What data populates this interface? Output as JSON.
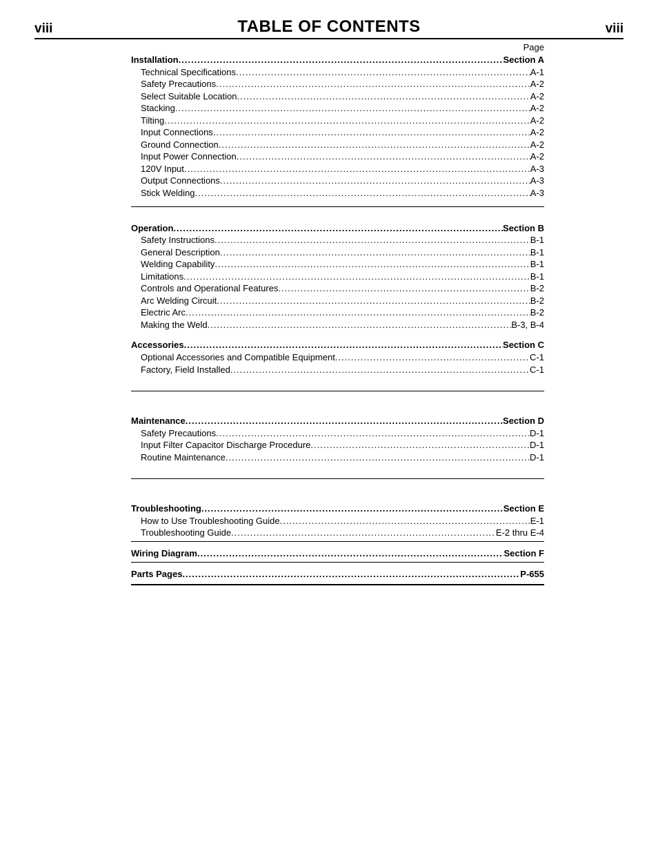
{
  "header": {
    "left_page_num": "viii",
    "title": "TABLE OF CONTENTS",
    "right_page_num": "viii"
  },
  "page_label": "Page",
  "sections": [
    {
      "style": "tight",
      "rows": [
        {
          "label": "Installation",
          "page": "Section A",
          "bold": true,
          "indent": 0
        },
        {
          "label": "Technical Specifications",
          "page": "A-1",
          "bold": false,
          "indent": 1
        },
        {
          "label": "Safety Precautions",
          "page": "A-2",
          "bold": false,
          "indent": 1
        },
        {
          "label": "Select Suitable Location",
          "page": "A-2",
          "bold": false,
          "indent": 1
        },
        {
          "label": "Stacking",
          "page": "A-2",
          "bold": false,
          "indent": 1
        },
        {
          "label": "Tilting",
          "page": "A-2",
          "bold": false,
          "indent": 1
        },
        {
          "label": "Input Connections",
          "page": "A-2",
          "bold": false,
          "indent": 1
        },
        {
          "label": "Ground Connection",
          "page": "A-2",
          "bold": false,
          "indent": 1
        },
        {
          "label": "Input Power Connection",
          "page": "A-2",
          "bold": false,
          "indent": 1
        },
        {
          "label": "120V Input",
          "page": "A-3",
          "bold": false,
          "indent": 1
        },
        {
          "label": "Output Connections",
          "page": "A-3",
          "bold": false,
          "indent": 1
        },
        {
          "label": "Stick Welding",
          "page": "A-3",
          "bold": false,
          "indent": 1
        }
      ]
    },
    {
      "style": "big",
      "pre_spacer": true,
      "rows": [
        {
          "label": "Operation",
          "page": "Section B",
          "bold": true,
          "indent": 0
        },
        {
          "label": "Safety Instructions",
          "page": "B-1",
          "bold": false,
          "indent": 1
        },
        {
          "label": "General Description",
          "page": "B-1",
          "bold": false,
          "indent": 1
        },
        {
          "label": "Welding Capability",
          "page": "B-1",
          "bold": false,
          "indent": 1
        },
        {
          "label": "Limitations",
          "page": "B-1",
          "bold": false,
          "indent": 1
        },
        {
          "label": "Controls and Operational Features",
          "page": "B-2",
          "bold": false,
          "indent": 1
        },
        {
          "label": "Arc Welding Circuit",
          "page": "B-2",
          "bold": false,
          "indent": 1
        },
        {
          "label": "Electric Arc",
          "page": "B-2",
          "bold": false,
          "indent": 1
        },
        {
          "label": "Making the Weld",
          "page": "B-3, B-4",
          "bold": false,
          "indent": 1
        },
        {
          "spacer": true
        },
        {
          "label": "Accessories",
          "page": "Section C",
          "bold": true,
          "indent": 0
        },
        {
          "label": "Optional Accessories and Compatible Equipment",
          "page": "C-1",
          "bold": false,
          "indent": 1
        },
        {
          "label": "Factory, Field Installed",
          "page": "C-1",
          "bold": false,
          "indent": 1
        }
      ]
    },
    {
      "style": "big",
      "pre_spacer": true,
      "rows": [
        {
          "label": "Maintenance",
          "page": "Section D",
          "bold": true,
          "indent": 0
        },
        {
          "label": "Safety Precautions",
          "page": "D-1",
          "bold": false,
          "indent": 1
        },
        {
          "label": "Input Filter Capacitor Discharge Procedure",
          "page": "D-1",
          "bold": false,
          "indent": 1
        },
        {
          "label": "Routine Maintenance",
          "page": "D-1",
          "bold": false,
          "indent": 1
        }
      ]
    },
    {
      "style": "no",
      "pre_spacer": true,
      "rows": [
        {
          "label": "Troubleshooting",
          "page": "Section E",
          "bold": true,
          "indent": 0
        },
        {
          "label": "How to Use Troubleshooting Guide",
          "page": "E-1",
          "bold": false,
          "indent": 1
        },
        {
          "label": "Troubleshooting Guide",
          "page": "E-2 thru  E-4",
          "bold": false,
          "indent": 1
        }
      ]
    },
    {
      "style": "no",
      "rows": [
        {
          "label": "Wiring Diagram",
          "page": "Section F",
          "bold": true,
          "indent": 0
        }
      ]
    },
    {
      "style": "last",
      "rows": [
        {
          "label": "Parts Pages",
          "page": "P-655",
          "bold": true,
          "indent": 0
        }
      ]
    }
  ]
}
